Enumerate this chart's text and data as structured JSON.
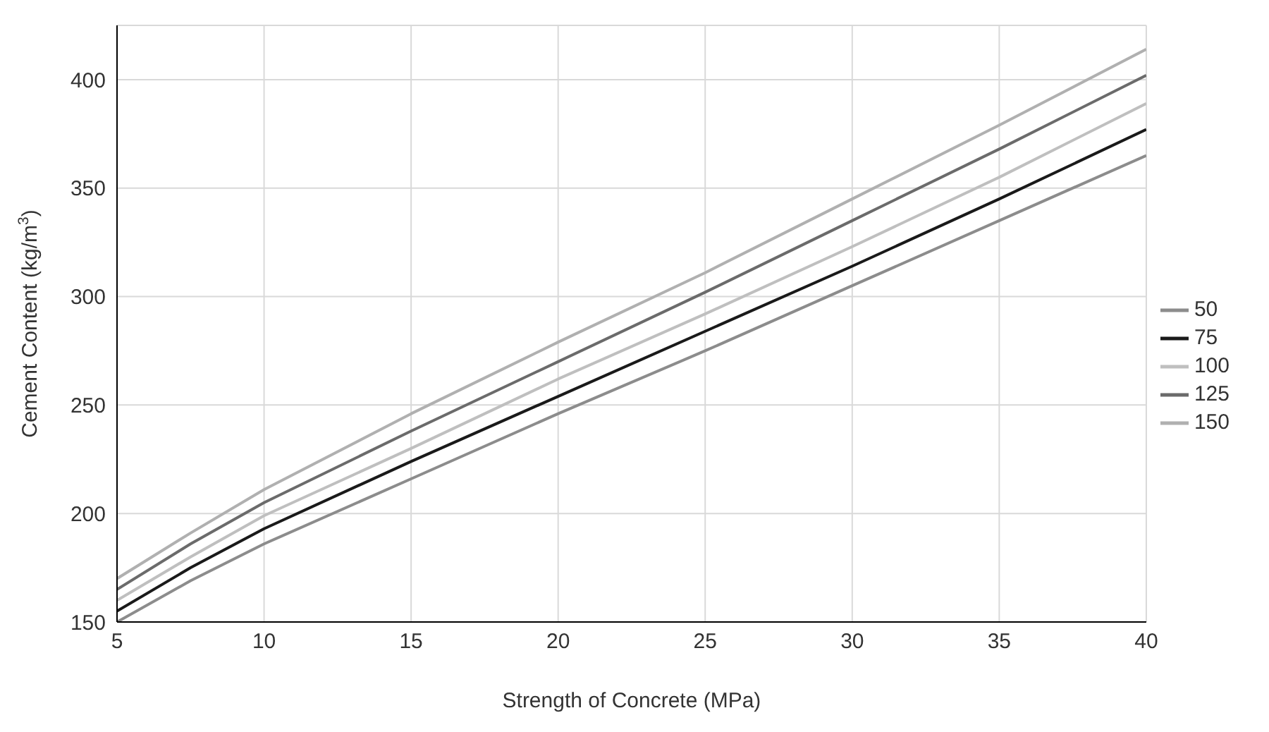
{
  "chart_data": {
    "type": "line",
    "xlabel": "Strength of Concrete (MPa)",
    "ylabel": "Cement Content (kg/m$^{3}$)",
    "x": [
      5,
      7.5,
      10,
      15,
      20,
      25,
      30,
      35,
      40
    ],
    "series": [
      {
        "name": "50",
        "color": "#8c8c8c",
        "values": [
          150,
          169,
          186,
          216,
          246,
          275,
          305,
          335,
          365
        ]
      },
      {
        "name": "75",
        "color": "#1a1a1a",
        "values": [
          155,
          175,
          193,
          224,
          254,
          284,
          314,
          345,
          377
        ]
      },
      {
        "name": "100",
        "color": "#bfbfbf",
        "values": [
          160,
          180,
          199,
          230,
          262,
          292,
          323,
          355,
          389
        ]
      },
      {
        "name": "125",
        "color": "#6b6b6b",
        "values": [
          165,
          186,
          205,
          238,
          270,
          302,
          335,
          368,
          402
        ]
      },
      {
        "name": "150",
        "color": "#b0b0b0",
        "values": [
          170,
          191,
          211,
          246,
          279,
          311,
          345,
          379,
          414
        ]
      }
    ],
    "xlim": [
      5,
      40
    ],
    "xticks": [
      5,
      10,
      15,
      20,
      25,
      30,
      35,
      40
    ],
    "ylim": [
      150,
      425
    ],
    "yticks": [
      150,
      200,
      250,
      300,
      350,
      400
    ],
    "grid": true,
    "legend": "right",
    "marker": "none",
    "line_style": "solid"
  }
}
